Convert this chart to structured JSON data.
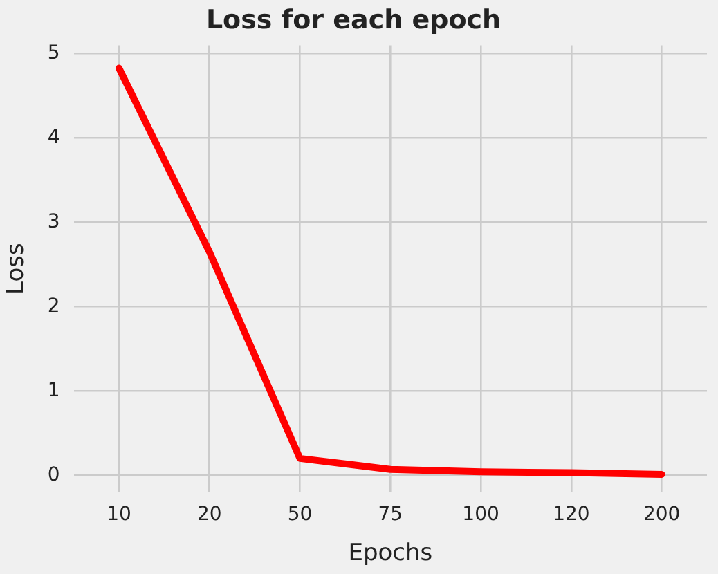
{
  "chart_data": {
    "type": "line",
    "title": "Loss for each epoch",
    "xlabel": "Epochs",
    "ylabel": "Loss",
    "categories": [
      "10",
      "20",
      "50",
      "75",
      "100",
      "120",
      "200"
    ],
    "series": [
      {
        "color": "#ff0000",
        "values": [
          4.83,
          2.65,
          0.2,
          0.07,
          0.04,
          0.03,
          0.01
        ]
      }
    ],
    "ylim": [
      -0.2,
      5.1
    ],
    "yticks": [
      0,
      1,
      2,
      3,
      4,
      5
    ],
    "grid": true,
    "legend": false,
    "marker": "none",
    "line_style": "solid"
  }
}
